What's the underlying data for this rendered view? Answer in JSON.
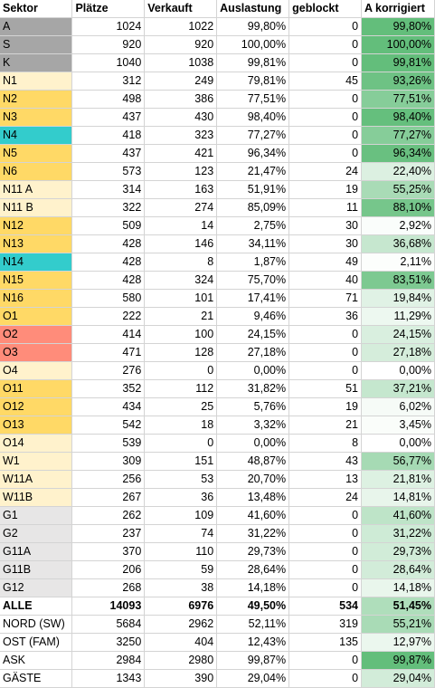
{
  "headers": [
    "Sektor",
    "Plätze",
    "Verkauft",
    "Auslastung",
    "geblockt",
    "A korrigiert"
  ],
  "colors": {
    "grey": "#a6a6a6",
    "yellow": "#ffd966",
    "light_yellow": "#fff2cc",
    "teal": "#33cccc",
    "salmon": "#ff8c7a",
    "light_grey": "#e7e6e6",
    "scale_low": "#ffffff",
    "scale_high": "#63be7b"
  },
  "rows": [
    {
      "sector": "A",
      "places": "1024",
      "sold": "1022",
      "util": "99,80%",
      "blocked": "0",
      "corr": "99,80%",
      "pct": 99.8,
      "color": "grey"
    },
    {
      "sector": "S",
      "places": "920",
      "sold": "920",
      "util": "100,00%",
      "blocked": "0",
      "corr": "100,00%",
      "pct": 100.0,
      "color": "grey"
    },
    {
      "sector": "K",
      "places": "1040",
      "sold": "1038",
      "util": "99,81%",
      "blocked": "0",
      "corr": "99,81%",
      "pct": 99.81,
      "color": "grey"
    },
    {
      "sector": "N1",
      "places": "312",
      "sold": "249",
      "util": "79,81%",
      "blocked": "45",
      "corr": "93,26%",
      "pct": 93.26,
      "color": "light_yellow"
    },
    {
      "sector": "N2",
      "places": "498",
      "sold": "386",
      "util": "77,51%",
      "blocked": "0",
      "corr": "77,51%",
      "pct": 77.51,
      "color": "yellow"
    },
    {
      "sector": "N3",
      "places": "437",
      "sold": "430",
      "util": "98,40%",
      "blocked": "0",
      "corr": "98,40%",
      "pct": 98.4,
      "color": "yellow"
    },
    {
      "sector": "N4",
      "places": "418",
      "sold": "323",
      "util": "77,27%",
      "blocked": "0",
      "corr": "77,27%",
      "pct": 77.27,
      "color": "teal"
    },
    {
      "sector": "N5",
      "places": "437",
      "sold": "421",
      "util": "96,34%",
      "blocked": "0",
      "corr": "96,34%",
      "pct": 96.34,
      "color": "yellow"
    },
    {
      "sector": "N6",
      "places": "573",
      "sold": "123",
      "util": "21,47%",
      "blocked": "24",
      "corr": "22,40%",
      "pct": 22.4,
      "color": "yellow"
    },
    {
      "sector": "N11 A",
      "places": "314",
      "sold": "163",
      "util": "51,91%",
      "blocked": "19",
      "corr": "55,25%",
      "pct": 55.25,
      "color": "light_yellow"
    },
    {
      "sector": "N11 B",
      "places": "322",
      "sold": "274",
      "util": "85,09%",
      "blocked": "11",
      "corr": "88,10%",
      "pct": 88.1,
      "color": "light_yellow"
    },
    {
      "sector": "N12",
      "places": "509",
      "sold": "14",
      "util": "2,75%",
      "blocked": "30",
      "corr": "2,92%",
      "pct": 2.92,
      "color": "yellow"
    },
    {
      "sector": "N13",
      "places": "428",
      "sold": "146",
      "util": "34,11%",
      "blocked": "30",
      "corr": "36,68%",
      "pct": 36.68,
      "color": "yellow"
    },
    {
      "sector": "N14",
      "places": "428",
      "sold": "8",
      "util": "1,87%",
      "blocked": "49",
      "corr": "2,11%",
      "pct": 2.11,
      "color": "teal"
    },
    {
      "sector": "N15",
      "places": "428",
      "sold": "324",
      "util": "75,70%",
      "blocked": "40",
      "corr": "83,51%",
      "pct": 83.51,
      "color": "yellow"
    },
    {
      "sector": "N16",
      "places": "580",
      "sold": "101",
      "util": "17,41%",
      "blocked": "71",
      "corr": "19,84%",
      "pct": 19.84,
      "color": "yellow"
    },
    {
      "sector": "O1",
      "places": "222",
      "sold": "21",
      "util": "9,46%",
      "blocked": "36",
      "corr": "11,29%",
      "pct": 11.29,
      "color": "yellow"
    },
    {
      "sector": "O2",
      "places": "414",
      "sold": "100",
      "util": "24,15%",
      "blocked": "0",
      "corr": "24,15%",
      "pct": 24.15,
      "color": "salmon"
    },
    {
      "sector": "O3",
      "places": "471",
      "sold": "128",
      "util": "27,18%",
      "blocked": "0",
      "corr": "27,18%",
      "pct": 27.18,
      "color": "salmon"
    },
    {
      "sector": "O4",
      "places": "276",
      "sold": "0",
      "util": "0,00%",
      "blocked": "0",
      "corr": "0,00%",
      "pct": 0.0,
      "color": "light_yellow"
    },
    {
      "sector": "O11",
      "places": "352",
      "sold": "112",
      "util": "31,82%",
      "blocked": "51",
      "corr": "37,21%",
      "pct": 37.21,
      "color": "yellow"
    },
    {
      "sector": "O12",
      "places": "434",
      "sold": "25",
      "util": "5,76%",
      "blocked": "19",
      "corr": "6,02%",
      "pct": 6.02,
      "color": "yellow"
    },
    {
      "sector": "O13",
      "places": "542",
      "sold": "18",
      "util": "3,32%",
      "blocked": "21",
      "corr": "3,45%",
      "pct": 3.45,
      "color": "yellow"
    },
    {
      "sector": "O14",
      "places": "539",
      "sold": "0",
      "util": "0,00%",
      "blocked": "8",
      "corr": "0,00%",
      "pct": 0.0,
      "color": "light_yellow"
    },
    {
      "sector": "W1",
      "places": "309",
      "sold": "151",
      "util": "48,87%",
      "blocked": "43",
      "corr": "56,77%",
      "pct": 56.77,
      "color": "light_yellow"
    },
    {
      "sector": "W11A",
      "places": "256",
      "sold": "53",
      "util": "20,70%",
      "blocked": "13",
      "corr": "21,81%",
      "pct": 21.81,
      "color": "light_yellow"
    },
    {
      "sector": "W11B",
      "places": "267",
      "sold": "36",
      "util": "13,48%",
      "blocked": "24",
      "corr": "14,81%",
      "pct": 14.81,
      "color": "light_yellow"
    },
    {
      "sector": "G1",
      "places": "262",
      "sold": "109",
      "util": "41,60%",
      "blocked": "0",
      "corr": "41,60%",
      "pct": 41.6,
      "color": "light_grey"
    },
    {
      "sector": "G2",
      "places": "237",
      "sold": "74",
      "util": "31,22%",
      "blocked": "0",
      "corr": "31,22%",
      "pct": 31.22,
      "color": "light_grey"
    },
    {
      "sector": "G11A",
      "places": "370",
      "sold": "110",
      "util": "29,73%",
      "blocked": "0",
      "corr": "29,73%",
      "pct": 29.73,
      "color": "light_grey"
    },
    {
      "sector": "G11B",
      "places": "206",
      "sold": "59",
      "util": "28,64%",
      "blocked": "0",
      "corr": "28,64%",
      "pct": 28.64,
      "color": "light_grey"
    },
    {
      "sector": "G12",
      "places": "268",
      "sold": "38",
      "util": "14,18%",
      "blocked": "0",
      "corr": "14,18%",
      "pct": 14.18,
      "color": "light_grey"
    },
    {
      "sector": "ALLE",
      "places": "14093",
      "sold": "6976",
      "util": "49,50%",
      "blocked": "534",
      "corr": "51,45%",
      "pct": 51.45,
      "color": "",
      "bold": true
    },
    {
      "sector": "NORD (SW)",
      "places": "5684",
      "sold": "2962",
      "util": "52,11%",
      "blocked": "319",
      "corr": "55,21%",
      "pct": 55.21,
      "color": ""
    },
    {
      "sector": "OST (FAM)",
      "places": "3250",
      "sold": "404",
      "util": "12,43%",
      "blocked": "135",
      "corr": "12,97%",
      "pct": 12.97,
      "color": ""
    },
    {
      "sector": "ASK",
      "places": "2984",
      "sold": "2980",
      "util": "99,87%",
      "blocked": "0",
      "corr": "99,87%",
      "pct": 99.87,
      "color": ""
    },
    {
      "sector": "GÄSTE",
      "places": "1343",
      "sold": "390",
      "util": "29,04%",
      "blocked": "0",
      "corr": "29,04%",
      "pct": 29.04,
      "color": ""
    }
  ]
}
